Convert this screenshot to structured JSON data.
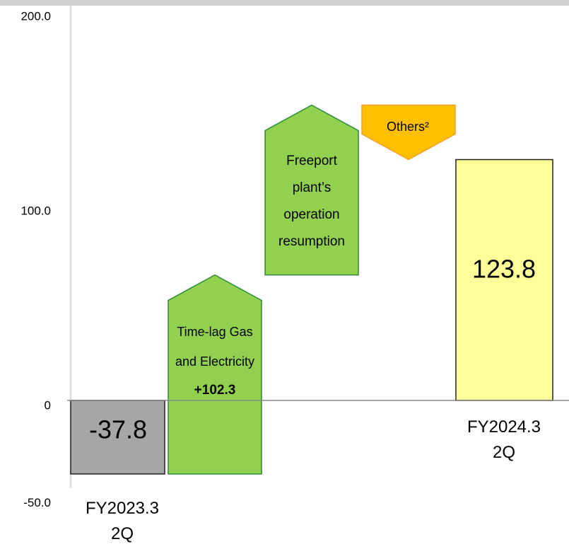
{
  "chart_data": {
    "type": "waterfall",
    "categories": [
      "FY2023.3\n2Q",
      "Time-lag Gas\nand Electricity",
      "Freeport\nplant’s\noperation\nresumption",
      "Others²",
      "FY2024.3\n2Q"
    ],
    "values": [
      -37.8,
      102.3,
      87.3,
      -28.0,
      123.8
    ],
    "value_labels": [
      "-37.8",
      "+102.3",
      null,
      null,
      "123.8"
    ],
    "measure": [
      "absolute",
      "relative",
      "relative",
      "relative",
      "total"
    ],
    "colors": [
      "#a6a6a6",
      "#92d050",
      "#92d050",
      "#ffc000",
      "#ffff99"
    ],
    "ylim": [
      -50,
      200
    ],
    "yticks": [
      {
        "value": 200,
        "label": "200.0"
      },
      {
        "value": 100,
        "label": "100.0"
      },
      0,
      {
        "value": -50,
        "label": "-50.0"
      }
    ]
  }
}
